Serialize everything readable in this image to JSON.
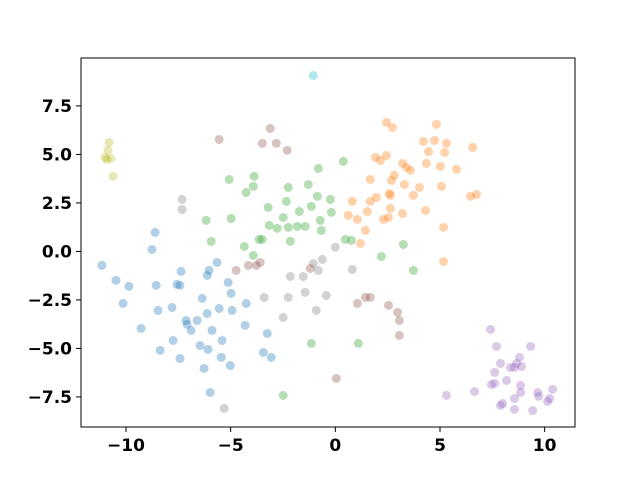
{
  "chart_data": {
    "type": "scatter",
    "xlim": [
      -12.15,
      11.45
    ],
    "ylim": [
      -9.05,
      9.97
    ],
    "xticks": [
      {
        "value": -10,
        "label": "−10"
      },
      {
        "value": -5,
        "label": "−5"
      },
      0,
      5,
      10
    ],
    "yticks": [
      {
        "value": -7.5,
        "label": "−7.5"
      },
      {
        "value": -5,
        "label": "−5.0"
      },
      {
        "value": -2.5,
        "label": "−2.5"
      },
      {
        "value": 0,
        "label": "0.0"
      },
      2.5,
      {
        "value": 5,
        "label": "5.0"
      },
      7.5
    ],
    "opacity": 0.35,
    "series": [
      {
        "color": "#1f77b4",
        "x": [
          -11.15,
          -10.48,
          -9.86,
          -10.14,
          -9.28,
          -8.76,
          -8.61,
          -8.56,
          -8.47,
          -8.37,
          -7.75,
          -7.37,
          -7.8,
          -7.42,
          -7.56,
          -7.13,
          -7.08,
          -6.89,
          -7.42,
          -6.6,
          -6.36,
          -6.12,
          -6.03,
          -6.12,
          -5.89,
          -6.08,
          -5.65,
          -5.55,
          -5.41,
          -5.45,
          -5.12,
          -4.98,
          -5.02,
          -4.93,
          -4.31,
          -4.26,
          -6.27,
          -5.98,
          -3.44,
          -3.25,
          -3.06,
          -6.46
        ],
        "y": [
          -0.72,
          -1.49,
          -1.8,
          -2.68,
          -3.97,
          0.1,
          0.98,
          -1.75,
          -3.04,
          -5.1,
          -4.59,
          -1.03,
          -2.89,
          -1.75,
          -1.7,
          -3.56,
          -3.76,
          -4.07,
          -5.52,
          -3.56,
          -2.42,
          -1.24,
          -0.98,
          -3.2,
          -4.07,
          -5.05,
          -0.57,
          -2.94,
          -4.59,
          -5.46,
          -1.6,
          -2.16,
          -5.88,
          -3.04,
          -3.81,
          -2.68,
          -6.03,
          -7.27,
          -5.21,
          -4.23,
          -5.46,
          -4.85
        ]
      },
      {
        "color": "#ff7f0e",
        "x": [
          2.44,
          2.73,
          0.62,
          0.81,
          1.05,
          1.44,
          1.67,
          1.67,
          1.91,
          1.96,
          2.3,
          2.44,
          2.63,
          2.63,
          2.68,
          2.82,
          3.21,
          3.3,
          3.4,
          3.59,
          3.73,
          4.21,
          4.31,
          4.35,
          4.45,
          4.74,
          4.83,
          5.02,
          5.07,
          5.17,
          5.17,
          5.31,
          5.22,
          5.79,
          6.46,
          6.75,
          6.56,
          2.58,
          3.21,
          4.02,
          2.54,
          1.2,
          2.15,
          1.53
        ],
        "y": [
          6.65,
          6.39,
          1.86,
          2.58,
          1.65,
          1.08,
          2.58,
          3.71,
          4.85,
          2.78,
          1.65,
          4.95,
          2.89,
          2.22,
          3.66,
          3.92,
          1.96,
          3.45,
          4.33,
          4.18,
          2.89,
          5.67,
          2.11,
          4.54,
          5.15,
          5.72,
          6.55,
          4.38,
          3.35,
          1.24,
          -0.52,
          5.57,
          5.1,
          4.23,
          2.84,
          2.94,
          5.36,
          2.99,
          4.54,
          3.3,
          1.75,
          0.41,
          4.69,
          2.06
        ]
      },
      {
        "color": "#2ca02c",
        "x": [
          -5.07,
          -3.88,
          -4.26,
          -3.92,
          -3.21,
          -3.16,
          -6.17,
          -5.93,
          -4.98,
          -4.35,
          -3.64,
          -3.49,
          -2.78,
          -2.49,
          -2.25,
          -2.34,
          -1.82,
          -1.29,
          -1.15,
          -0.81,
          -0.86,
          -0.72,
          -0.67,
          -1.44,
          -2.15,
          -2.25,
          0.38,
          -0.24,
          -0.19,
          0.77,
          2.2,
          3.25,
          3.73,
          -1.15,
          1.1,
          -2.49,
          -1.72,
          -3.92,
          0.48
        ],
        "y": [
          3.71,
          3.87,
          3.04,
          3.35,
          2.27,
          1.34,
          1.6,
          0.52,
          1.7,
          0.26,
          0.62,
          0.62,
          1.19,
          1.75,
          3.3,
          2.58,
          1.29,
          3.45,
          2.32,
          4.28,
          2.84,
          1.6,
          1.08,
          1.29,
          0.52,
          1.24,
          4.64,
          2.68,
          2.01,
          0.57,
          -0.26,
          0.36,
          -0.98,
          -4.74,
          -4.74,
          -7.42,
          2.06,
          -0.21,
          0.62
        ]
      },
      {
        "color": "#7f7f7f",
        "x": [
          -7.32,
          -7.32,
          -2.15,
          -1.53,
          -1.44,
          -1.05,
          -0.81,
          -0.62,
          -0.43,
          -0.91,
          -2.25,
          -3.4,
          0,
          0.81,
          -5.31,
          -2.49
        ],
        "y": [
          2.68,
          2.16,
          -1.29,
          -1.29,
          -2.11,
          -0.62,
          -0.98,
          -0.41,
          -2.27,
          -3.04,
          -2.37,
          -2.37,
          0.21,
          -0.93,
          -8.09,
          -3.4
        ]
      },
      {
        "color": "#8c564b",
        "x": [
          -5.55,
          -3.49,
          -3.11,
          -2.82,
          -2.3,
          -4.74,
          -4.16,
          -3.78,
          -3.59,
          -1.2,
          0.05,
          1.05,
          1.44,
          1.67,
          2.54,
          2.97,
          3.06,
          3.06
        ],
        "y": [
          5.77,
          5.57,
          6.34,
          5.57,
          5.21,
          -0.98,
          -0.72,
          -0.72,
          -0.57,
          -0.88,
          -6.55,
          -2.68,
          -2.37,
          -2.37,
          -2.78,
          -3.14,
          -3.56,
          -4.33
        ]
      },
      {
        "color": "#9467bd",
        "x": [
          7.42,
          7.7,
          7.89,
          7.61,
          7.61,
          7.46,
          7.89,
          7.99,
          8.18,
          8.37,
          8.56,
          8.66,
          8.8,
          8.9,
          8.56,
          8.85,
          9.33,
          9.43,
          9.67,
          9.71,
          10.24,
          10.38,
          10.14,
          5.31,
          6.65,
          8.56,
          8.85
        ],
        "y": [
          -4.02,
          -4.9,
          -5.77,
          -6.24,
          -6.8,
          -6.86,
          -7.94,
          -7.84,
          -6.65,
          -5.98,
          -5.98,
          -5.77,
          -5.46,
          -5.93,
          -7.58,
          -7.27,
          -4.9,
          -8.2,
          -7.27,
          -7.47,
          -7.58,
          -7.11,
          -7.73,
          -7.42,
          -7.22,
          -8.14,
          -6.91
        ]
      },
      {
        "color": "#bcbd22",
        "x": [
          -10.81,
          -10.86,
          -11.0,
          -10.91,
          -10.72,
          -10.62
        ],
        "y": [
          5.62,
          5.21,
          4.85,
          4.74,
          4.79,
          3.87
        ]
      },
      {
        "color": "#17becf",
        "x": [
          -1.05
        ],
        "y": [
          9.07
        ]
      }
    ]
  }
}
